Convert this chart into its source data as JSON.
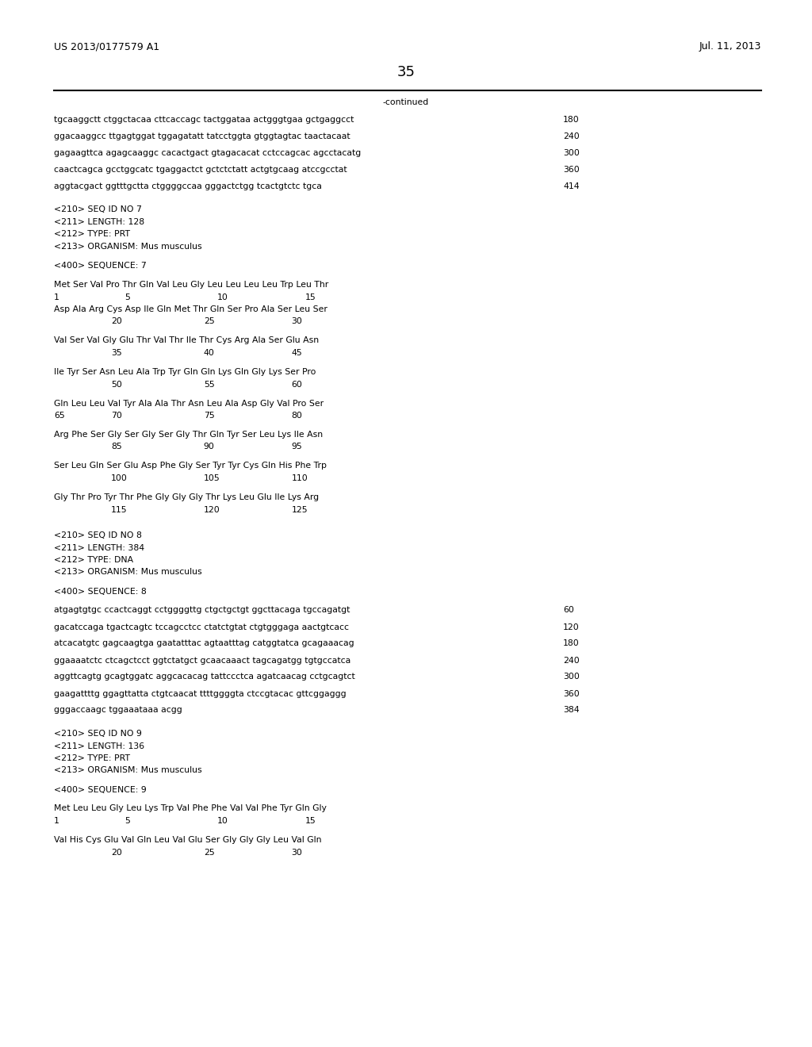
{
  "header_left": "US 2013/0177579 A1",
  "header_right": "Jul. 11, 2013",
  "page_number": "35",
  "continued_label": "-continued",
  "background_color": "#ffffff",
  "text_color": "#000000",
  "lines": [
    {
      "type": "dna",
      "text": "tgcaaggctt ctggctacaa cttcaccagc tactggataa actgggtgaa gctgaggcct",
      "num": "180"
    },
    {
      "type": "dna",
      "text": "ggacaaggcc ttgagtggat tggagatatt tatcctggta gtggtagtac taactacaat",
      "num": "240"
    },
    {
      "type": "dna",
      "text": "gagaagttca agagcaaggc cacactgact gtagacacat cctccagcac agcctacatg",
      "num": "300"
    },
    {
      "type": "dna",
      "text": "caactcagca gcctggcatc tgaggactct gctctctatt actgtgcaag atccgcctat",
      "num": "360"
    },
    {
      "type": "dna",
      "text": "aggtacgact ggtttgctta ctggggccaa gggactctgg tcactgtctc tgca",
      "num": "414"
    },
    {
      "type": "blank"
    },
    {
      "type": "meta",
      "text": "<210> SEQ ID NO 7"
    },
    {
      "type": "meta",
      "text": "<211> LENGTH: 128"
    },
    {
      "type": "meta",
      "text": "<212> TYPE: PRT"
    },
    {
      "type": "meta",
      "text": "<213> ORGANISM: Mus musculus"
    },
    {
      "type": "blank"
    },
    {
      "type": "meta",
      "text": "<400> SEQUENCE: 7"
    },
    {
      "type": "blank"
    },
    {
      "type": "aa_seq",
      "text": "Met Ser Val Pro Thr Gln Val Leu Gly Leu Leu Leu Leu Trp Leu Thr"
    },
    {
      "type": "aa_nums",
      "nums": [
        [
          "1",
          0
        ],
        [
          "5",
          16
        ],
        [
          "10",
          37
        ],
        [
          "15",
          57
        ]
      ]
    },
    {
      "type": "aa_seq",
      "text": "Asp Ala Arg Cys Asp Ile Gln Met Thr Gln Ser Pro Ala Ser Leu Ser"
    },
    {
      "type": "aa_nums",
      "nums": [
        [
          "20",
          13
        ],
        [
          "25",
          34
        ],
        [
          "30",
          54
        ]
      ]
    },
    {
      "type": "blank"
    },
    {
      "type": "aa_seq",
      "text": "Val Ser Val Gly Glu Thr Val Thr Ile Thr Cys Arg Ala Ser Glu Asn"
    },
    {
      "type": "aa_nums",
      "nums": [
        [
          "35",
          13
        ],
        [
          "40",
          34
        ],
        [
          "45",
          54
        ]
      ]
    },
    {
      "type": "blank"
    },
    {
      "type": "aa_seq",
      "text": "Ile Tyr Ser Asn Leu Ala Trp Tyr Gln Gln Lys Gln Gly Lys Ser Pro"
    },
    {
      "type": "aa_nums",
      "nums": [
        [
          "50",
          13
        ],
        [
          "55",
          34
        ],
        [
          "60",
          54
        ]
      ]
    },
    {
      "type": "blank"
    },
    {
      "type": "aa_seq",
      "text": "Gln Leu Leu Val Tyr Ala Ala Thr Asn Leu Ala Asp Gly Val Pro Ser"
    },
    {
      "type": "aa_nums",
      "nums": [
        [
          "65",
          0
        ],
        [
          "70",
          13
        ],
        [
          "75",
          34
        ],
        [
          "80",
          54
        ]
      ]
    },
    {
      "type": "blank"
    },
    {
      "type": "aa_seq",
      "text": "Arg Phe Ser Gly Ser Gly Ser Gly Thr Gln Tyr Ser Leu Lys Ile Asn"
    },
    {
      "type": "aa_nums",
      "nums": [
        [
          "85",
          13
        ],
        [
          "90",
          34
        ],
        [
          "95",
          54
        ]
      ]
    },
    {
      "type": "blank"
    },
    {
      "type": "aa_seq",
      "text": "Ser Leu Gln Ser Glu Asp Phe Gly Ser Tyr Tyr Cys Gln His Phe Trp"
    },
    {
      "type": "aa_nums",
      "nums": [
        [
          "100",
          13
        ],
        [
          "105",
          34
        ],
        [
          "110",
          54
        ]
      ]
    },
    {
      "type": "blank"
    },
    {
      "type": "aa_seq",
      "text": "Gly Thr Pro Tyr Thr Phe Gly Gly Gly Thr Lys Leu Glu Ile Lys Arg"
    },
    {
      "type": "aa_nums",
      "nums": [
        [
          "115",
          13
        ],
        [
          "120",
          34
        ],
        [
          "125",
          54
        ]
      ]
    },
    {
      "type": "blank"
    },
    {
      "type": "blank"
    },
    {
      "type": "meta",
      "text": "<210> SEQ ID NO 8"
    },
    {
      "type": "meta",
      "text": "<211> LENGTH: 384"
    },
    {
      "type": "meta",
      "text": "<212> TYPE: DNA"
    },
    {
      "type": "meta",
      "text": "<213> ORGANISM: Mus musculus"
    },
    {
      "type": "blank"
    },
    {
      "type": "meta",
      "text": "<400> SEQUENCE: 8"
    },
    {
      "type": "blank"
    },
    {
      "type": "dna",
      "text": "atgagtgtgc ccactcaggt cctggggttg ctgctgctgt ggcttacaga tgccagatgt",
      "num": "60"
    },
    {
      "type": "dna",
      "text": "gacatccaga tgactcagtc tccagcctcc ctatctgtat ctgtgggaga aactgtcacc",
      "num": "120"
    },
    {
      "type": "dna",
      "text": "atcacatgtc gagcaagtga gaatatttac agtaatttag catggtatca gcagaaacag",
      "num": "180"
    },
    {
      "type": "dna",
      "text": "ggaaaatctc ctcagctcct ggtctatgct gcaacaaact tagcagatgg tgtgccatca",
      "num": "240"
    },
    {
      "type": "dna",
      "text": "aggttcagtg gcagtggatc aggcacacag tattccctca agatcaacag cctgcagtct",
      "num": "300"
    },
    {
      "type": "dna",
      "text": "gaagattttg ggagttatta ctgtcaacat ttttggggta ctccgtacac gttcggaggg",
      "num": "360"
    },
    {
      "type": "dna",
      "text": "gggaccaagc tggaaataaa acgg",
      "num": "384"
    },
    {
      "type": "blank"
    },
    {
      "type": "meta",
      "text": "<210> SEQ ID NO 9"
    },
    {
      "type": "meta",
      "text": "<211> LENGTH: 136"
    },
    {
      "type": "meta",
      "text": "<212> TYPE: PRT"
    },
    {
      "type": "meta",
      "text": "<213> ORGANISM: Mus musculus"
    },
    {
      "type": "blank"
    },
    {
      "type": "meta",
      "text": "<400> SEQUENCE: 9"
    },
    {
      "type": "blank"
    },
    {
      "type": "aa_seq",
      "text": "Met Leu Leu Gly Leu Lys Trp Val Phe Phe Val Val Phe Tyr Gln Gly"
    },
    {
      "type": "aa_nums",
      "nums": [
        [
          "1",
          0
        ],
        [
          "5",
          16
        ],
        [
          "10",
          37
        ],
        [
          "15",
          57
        ]
      ]
    },
    {
      "type": "blank"
    },
    {
      "type": "aa_seq",
      "text": "Val His Cys Glu Val Gln Leu Val Glu Ser Gly Gly Gly Leu Val Gln"
    },
    {
      "type": "aa_nums",
      "nums": [
        [
          "20",
          13
        ],
        [
          "25",
          34
        ],
        [
          "30",
          54
        ]
      ]
    }
  ]
}
